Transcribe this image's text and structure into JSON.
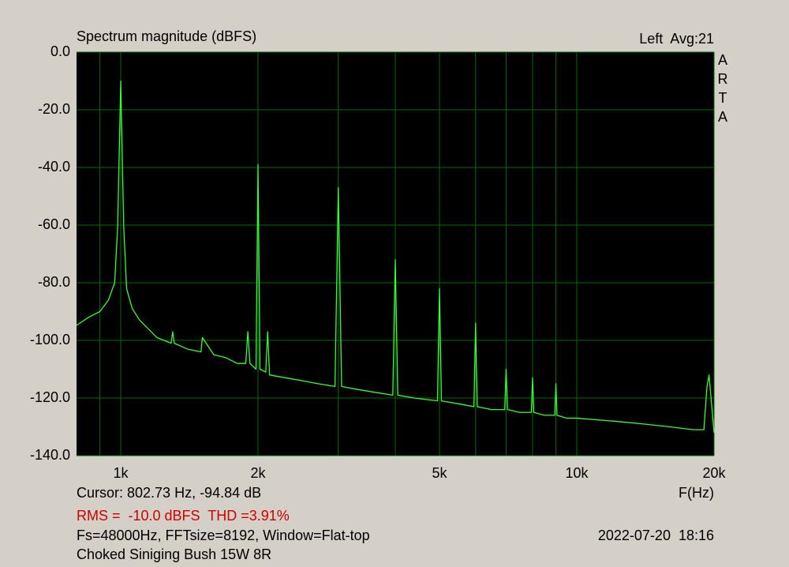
{
  "chart_data": {
    "type": "line",
    "title": "Spectrum magnitude (dBFS)",
    "channel": "Left  Avg:21",
    "brand": "ARTA",
    "xlabel": "F(Hz)",
    "cursor": "Cursor: 802.73 Hz, -94.84 dB",
    "measurement": "RMS =  -10.0 dBFS  THD =3.91%",
    "settings": "Fs=48000Hz, FFTsize=8192, Window=Flat-top",
    "timestamp": "2022-07-20  18:16",
    "caption": "Choked Siniging Bush 15W 8R",
    "xscale": "log",
    "grid": true,
    "background": "#000000",
    "grid_color": "#006a00",
    "xlim": [
      800,
      20000
    ],
    "xticks": [
      {
        "value": 1000,
        "label": "1k"
      },
      {
        "value": 2000,
        "label": "2k"
      },
      {
        "value": 5000,
        "label": "5k"
      },
      {
        "value": 10000,
        "label": "10k"
      },
      {
        "value": 20000,
        "label": "20k"
      }
    ],
    "xgrid": [
      900,
      3000,
      4000,
      6000,
      7000,
      8000,
      9000
    ],
    "ylim": [
      -140,
      0
    ],
    "yticks": [
      {
        "value": -140,
        "label": "-140.0"
      },
      {
        "value": -120,
        "label": "-120.0"
      },
      {
        "value": -100,
        "label": "-100.0"
      },
      {
        "value": -80,
        "label": "-80.0"
      },
      {
        "value": -60,
        "label": "-60.0"
      },
      {
        "value": -40,
        "label": "-40.0"
      },
      {
        "value": -20,
        "label": "-20.0"
      },
      {
        "value": 0,
        "label": "0.0"
      }
    ],
    "x": [
      800,
      850,
      900,
      940,
      970,
      985,
      1000,
      1015,
      1030,
      1060,
      1100,
      1200,
      1290,
      1300,
      1310,
      1400,
      1500,
      1510,
      1600,
      1700,
      1800,
      1880,
      1900,
      1920,
      1980,
      2000,
      2020,
      2080,
      2100,
      2120,
      2300,
      2500,
      2700,
      2950,
      3000,
      3050,
      3300,
      3600,
      3950,
      4000,
      4050,
      4400,
      4950,
      5000,
      5050,
      5500,
      5950,
      6000,
      6050,
      6500,
      6950,
      7000,
      7050,
      7500,
      7950,
      8000,
      8050,
      8500,
      8950,
      9000,
      9050,
      9500,
      10000,
      12000,
      14000,
      16000,
      18000,
      19000,
      19300,
      19500,
      19700,
      20000
    ],
    "series": [
      {
        "color": "#33ff33",
        "values": [
          -94.8,
          -92,
          -90,
          -86,
          -80,
          -60,
          -10,
          -60,
          -82,
          -89,
          -93,
          -99,
          -101,
          -97,
          -101,
          -103,
          -104,
          -99,
          -105,
          -106,
          -108,
          -108,
          -97,
          -108,
          -110,
          -39,
          -110,
          -111,
          -97,
          -112,
          -113,
          -114,
          -115,
          -116,
          -47,
          -116,
          -117,
          -118,
          -119,
          -72,
          -119,
          -120,
          -121,
          -82,
          -121,
          -122,
          -123,
          -94,
          -123,
          -124,
          -124,
          -110,
          -124,
          -125,
          -125,
          -113,
          -125,
          -126,
          -126,
          -115,
          -126,
          -127,
          -127,
          -128,
          -129,
          -130,
          -131,
          -131,
          -116,
          -112,
          -120,
          -132
        ]
      }
    ]
  }
}
